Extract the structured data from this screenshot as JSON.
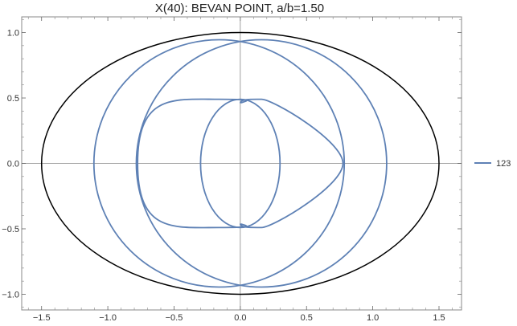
{
  "chart_data": {
    "type": "line",
    "title": "X(40): BEVAN POINT, a/b=1.50",
    "xlabel": "",
    "ylabel": "",
    "xlim": [
      -1.65,
      1.67
    ],
    "ylim": [
      -1.12,
      1.12
    ],
    "xticks": [
      -1.5,
      -1.0,
      -0.5,
      0.0,
      0.5,
      1.0,
      1.5
    ],
    "xtick_labels": [
      "−1.5",
      "−1.0",
      "−0.5",
      "0.0",
      "0.5",
      "1.0",
      "1.5"
    ],
    "yticks": [
      -1.0,
      -0.5,
      0.0,
      0.5,
      1.0
    ],
    "ytick_labels": [
      "−1.0",
      "−0.5",
      "0.0",
      "0.5",
      "1.0"
    ],
    "grid": false,
    "legend_position": "right",
    "ellipse": {
      "a": 1.5,
      "b": 1.0,
      "color": "#000000"
    },
    "series": [
      {
        "name": "123",
        "color": "#5e81b5",
        "curves": [
          {
            "kind": "circle",
            "cx": -0.16,
            "cy": 0.0,
            "r": 0.945
          },
          {
            "kind": "circle",
            "cx": 0.16,
            "cy": 0.0,
            "r": 0.945
          },
          {
            "kind": "ellipse",
            "cx": 0.0,
            "cy": 0.0,
            "rx": 0.3,
            "ry": 0.49
          },
          {
            "kind": "arc",
            "cx": -0.16,
            "cy": 0.0,
            "r": 0.49,
            "from": [
              -0.775,
              0.0
            ],
            "to": [
              0.0,
              0.46
            ],
            "apex": [
              -0.16,
              0.49
            ]
          },
          {
            "kind": "arc",
            "cx": 0.16,
            "cy": 0.0,
            "r": 0.49,
            "from": [
              0.0,
              0.46
            ],
            "to": [
              0.775,
              0.0
            ],
            "apex": [
              0.16,
              0.49
            ]
          },
          {
            "kind": "arc",
            "cx": -0.16,
            "cy": 0.0,
            "r": 0.49,
            "from": [
              -0.775,
              0.0
            ],
            "to": [
              0.0,
              -0.46
            ],
            "apex": [
              -0.16,
              -0.49
            ]
          },
          {
            "kind": "arc",
            "cx": 0.16,
            "cy": 0.0,
            "r": 0.49,
            "from": [
              0.0,
              -0.46
            ],
            "to": [
              0.775,
              0.0
            ],
            "apex": [
              0.16,
              -0.49
            ]
          }
        ]
      }
    ]
  }
}
